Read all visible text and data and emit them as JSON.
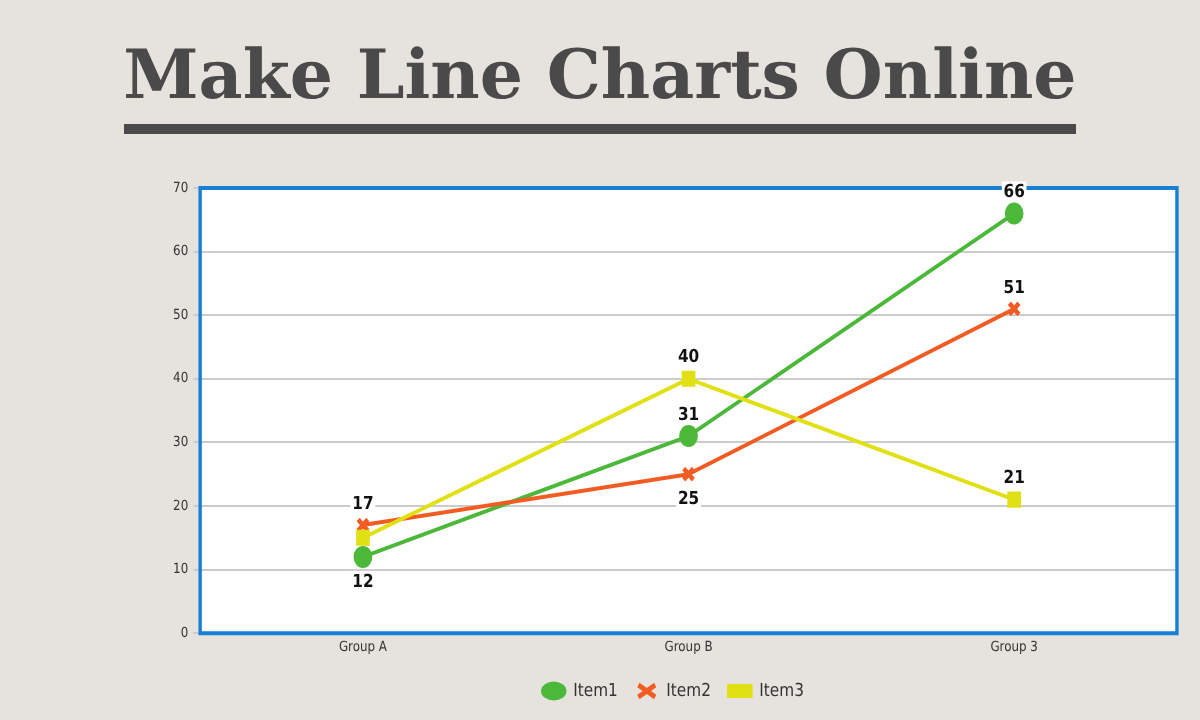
{
  "chart_data": {
    "type": "line",
    "title": "Make Line Charts Online",
    "categories": [
      "Group A",
      "Group B",
      "Group 3"
    ],
    "series": [
      {
        "name": "Item1",
        "color": "#4cb83a",
        "values": [
          12,
          31,
          66
        ],
        "marker": "circle",
        "value_labels": [
          "12",
          "31",
          "66"
        ]
      },
      {
        "name": "Item2",
        "color": "#f25c23",
        "values": [
          17,
          25,
          51
        ],
        "marker": "cross",
        "value_labels": [
          "17",
          "25",
          "51"
        ]
      },
      {
        "name": "Item3",
        "color": "#e0e014",
        "values": [
          15,
          40,
          21
        ],
        "marker": "square",
        "value_labels": [
          null,
          "40",
          "21"
        ]
      }
    ],
    "ylim": [
      0,
      70
    ],
    "yticks": [
      0,
      10,
      20,
      30,
      40,
      50,
      60,
      70
    ],
    "grid": "y",
    "legend": "bottom",
    "line_style": "solid"
  }
}
